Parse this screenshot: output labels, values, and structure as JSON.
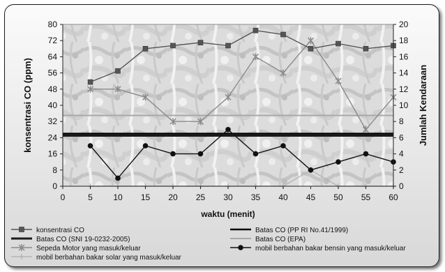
{
  "chart_data": {
    "type": "line",
    "xlabel": "waktu (menit)",
    "ylabel": "konsentrasi CO (ppm)",
    "y2label": "Jumlah Kendaraan",
    "xlim": [
      0,
      60
    ],
    "ylim": [
      0,
      80
    ],
    "y2lim": [
      0,
      20
    ],
    "x_ticks": [
      "0",
      "5",
      "10",
      "15",
      "20",
      "25",
      "30",
      "35",
      "40",
      "45",
      "50",
      "55",
      "60"
    ],
    "y_ticks": [
      "0",
      "8",
      "16",
      "24",
      "32",
      "40",
      "48",
      "56",
      "64",
      "72",
      "80"
    ],
    "y2_ticks": [
      "0",
      "2",
      "4",
      "6",
      "8",
      "10",
      "12",
      "14",
      "16",
      "18",
      "20"
    ],
    "grid": false,
    "legend_position": "bottom",
    "series": [
      {
        "name": "konsentrasi CO",
        "axis": "left",
        "color": "#555555",
        "marker": "square",
        "x": [
          5,
          10,
          15,
          20,
          25,
          30,
          35,
          40,
          45,
          50,
          55,
          60
        ],
        "y": [
          51.5,
          57,
          68,
          69.5,
          71,
          69.5,
          77,
          75,
          68,
          70.5,
          68,
          69.5
        ]
      },
      {
        "name": "Batas CO (SNI 19-0232-2005)",
        "axis": "left",
        "color": "#1a1a1a",
        "marker": "none",
        "x": [
          0,
          60
        ],
        "y": [
          25,
          25
        ]
      },
      {
        "name": "Sepeda Motor yang masuk/keluar",
        "axis": "right",
        "color": "#8a8a8a",
        "marker": "star",
        "x": [
          5,
          10,
          15,
          20,
          25,
          30,
          35,
          40,
          45,
          50,
          55,
          60
        ],
        "y": [
          12,
          12,
          11,
          8,
          8,
          11,
          16,
          14,
          18,
          13,
          7,
          11
        ]
      },
      {
        "name": "mobil berbahan bakar solar yang masuk/keluar",
        "axis": "right",
        "color": "#b5b5b5",
        "marker": "plus",
        "x": [
          5,
          10,
          15,
          20,
          25,
          30,
          35,
          40,
          45,
          50,
          55,
          60
        ],
        "y": [
          0,
          0,
          0,
          0,
          0,
          0,
          0,
          0,
          2,
          0,
          0,
          0
        ]
      },
      {
        "name": "Batas CO (PP RI No.41/1999)",
        "axis": "left",
        "color": "#000000",
        "marker": "none",
        "x": [
          0,
          60
        ],
        "y": [
          26,
          26
        ]
      },
      {
        "name": "Batas CO (EPA)",
        "axis": "left",
        "color": "#a8a8a8",
        "marker": "none",
        "x": [
          0,
          60
        ],
        "y": [
          35,
          35
        ]
      },
      {
        "name": "mobil berbahan bakar bensin yang masuk/keluar",
        "axis": "right",
        "color": "#111111",
        "marker": "circle",
        "x": [
          5,
          10,
          15,
          20,
          25,
          30,
          35,
          40,
          45,
          50,
          55,
          60
        ],
        "y": [
          5,
          1,
          5,
          4,
          4,
          7,
          4,
          5,
          2,
          3,
          4,
          3
        ]
      }
    ]
  }
}
